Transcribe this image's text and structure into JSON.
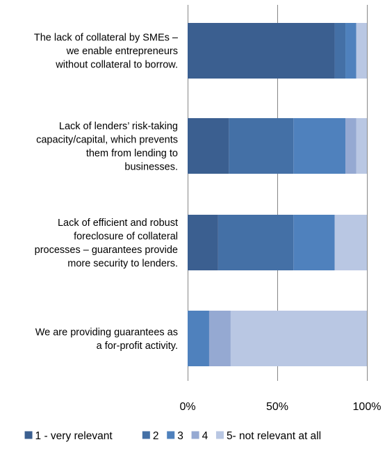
{
  "chart_data": {
    "type": "bar",
    "orientation": "horizontal",
    "stacked": "percent",
    "categories": [
      "The lack of collateral by SMEs – we enable entrepreneurs without collateral to borrow.",
      "Lack of lenders’ risk-taking capacity/capital, which prevents them from lending to businesses.",
      "Lack of efficient and robust foreclosure of collateral processes – guarantees provide more security to lenders.",
      "We are providing guarantees as a for-profit activity."
    ],
    "category_lines": [
      [
        "The lack of collateral by SMEs –",
        "we enable entrepreneurs",
        "without collateral to borrow."
      ],
      [
        "Lack of lenders’ risk-taking",
        "capacity/capital, which prevents",
        "them from lending to",
        "businesses."
      ],
      [
        "Lack of efficient and robust",
        "foreclosure of collateral",
        "processes – guarantees provide",
        "more security to lenders."
      ],
      [
        "We are providing guarantees as",
        "a for-profit activity."
      ]
    ],
    "series": [
      {
        "name": "1 - very relevant",
        "color": "#3b5f90",
        "values": [
          82,
          23,
          17,
          0
        ]
      },
      {
        "name": "2",
        "color": "#4470a6",
        "values": [
          6,
          36,
          42,
          0
        ]
      },
      {
        "name": "3",
        "color": "#4f81bd",
        "values": [
          6,
          29,
          23,
          12
        ]
      },
      {
        "name": "4",
        "color": "#95a9d2",
        "values": [
          0,
          6,
          0,
          12
        ]
      },
      {
        "name": "5- not  relevant at all",
        "color": "#b9c7e3",
        "values": [
          6,
          6,
          18,
          76
        ]
      }
    ],
    "x_ticks": [
      "0%",
      "50%",
      "100%"
    ],
    "xlim": [
      0,
      100
    ],
    "grid": true,
    "legend_position": "bottom"
  }
}
